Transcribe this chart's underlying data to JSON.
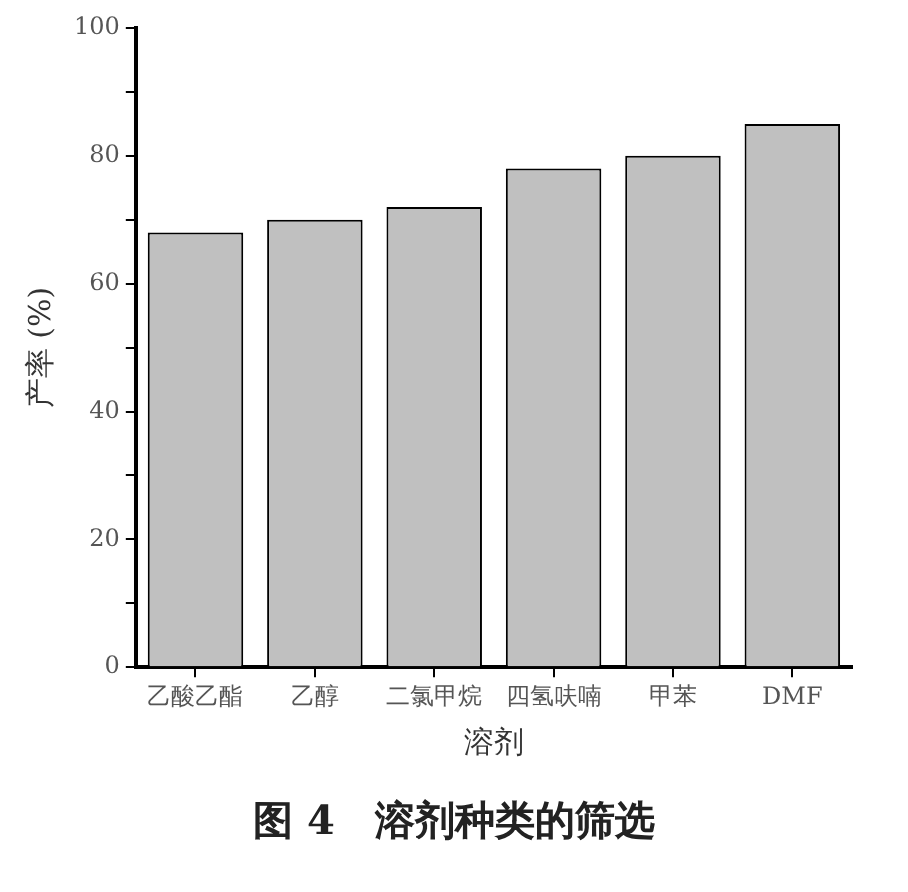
{
  "chart_data": {
    "type": "bar",
    "categories": [
      "乙酸乙酯",
      "乙醇",
      "二氯甲烷",
      "四氢呋喃",
      "甲苯",
      "DMF"
    ],
    "values": [
      68,
      70,
      72,
      78,
      80,
      85
    ],
    "color": "#c0c0c0",
    "xlabel": "溶剂",
    "ylabel": "产率 (%)",
    "ylim": [
      0,
      100
    ],
    "yticks": [
      0,
      {
        "value": 10,
        "label": null
      },
      20,
      {
        "value": 30,
        "label": null
      },
      40,
      {
        "value": 50,
        "label": null
      },
      60,
      {
        "value": 70,
        "label": null
      },
      80,
      {
        "value": 90,
        "label": null
      },
      100
    ],
    "grid": false,
    "legend": false,
    "annotations": [
      "图 4　溶剂种类的筛选"
    ]
  }
}
